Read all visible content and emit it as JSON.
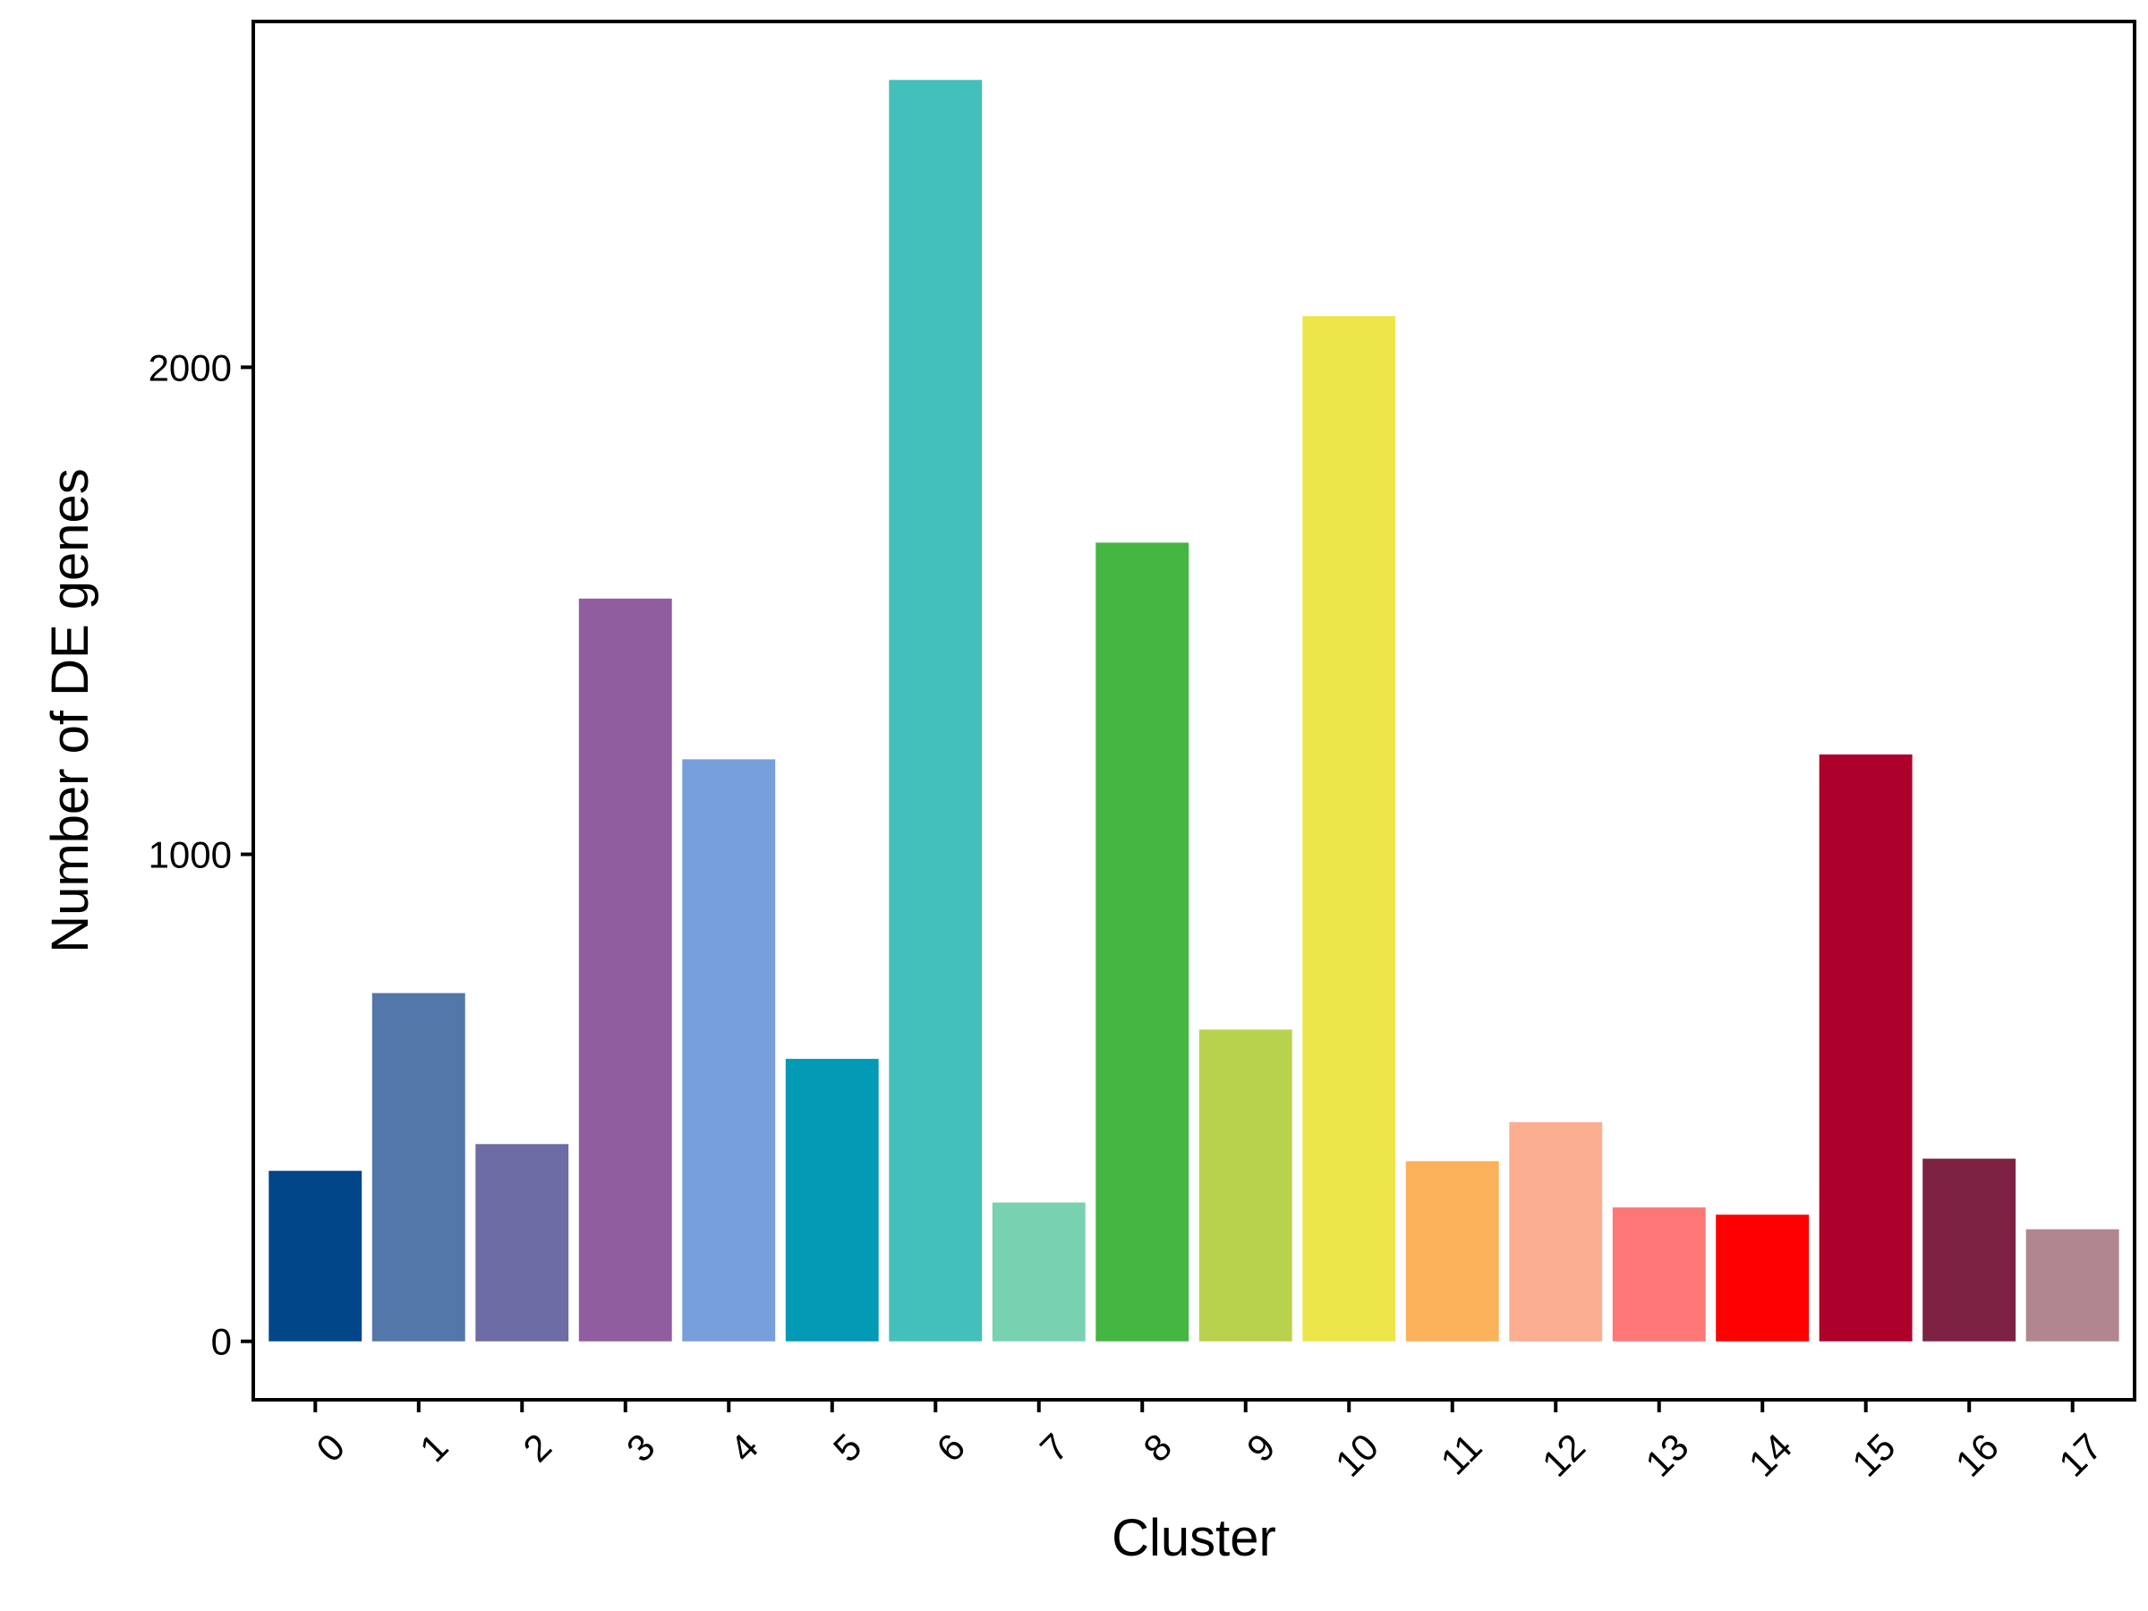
{
  "chart_data": {
    "type": "bar",
    "title": "",
    "xlabel": "Cluster",
    "ylabel": "Number of DE genes",
    "categories": [
      "0",
      "1",
      "2",
      "3",
      "4",
      "5",
      "6",
      "7",
      "8",
      "9",
      "10",
      "11",
      "12",
      "13",
      "14",
      "15",
      "16",
      "17"
    ],
    "values": [
      350,
      715,
      405,
      1525,
      1195,
      580,
      2590,
      285,
      1640,
      640,
      2105,
      370,
      450,
      275,
      260,
      1205,
      375,
      230
    ],
    "colors": [
      "#02468A",
      "#5377A8",
      "#6D6CA4",
      "#905E9E",
      "#769FDB",
      "#039AB6",
      "#43C0BB",
      "#78D2B2",
      "#45B641",
      "#B8D24D",
      "#ECE54A",
      "#FBB25A",
      "#FCAE91",
      "#FE7777",
      "#FE0000",
      "#AD002A",
      "#7D2242",
      "#B1868E"
    ],
    "yticks": [
      0,
      1000,
      2000
    ],
    "ylim": [
      -120,
      2710
    ],
    "grid": false,
    "legend": "none"
  }
}
